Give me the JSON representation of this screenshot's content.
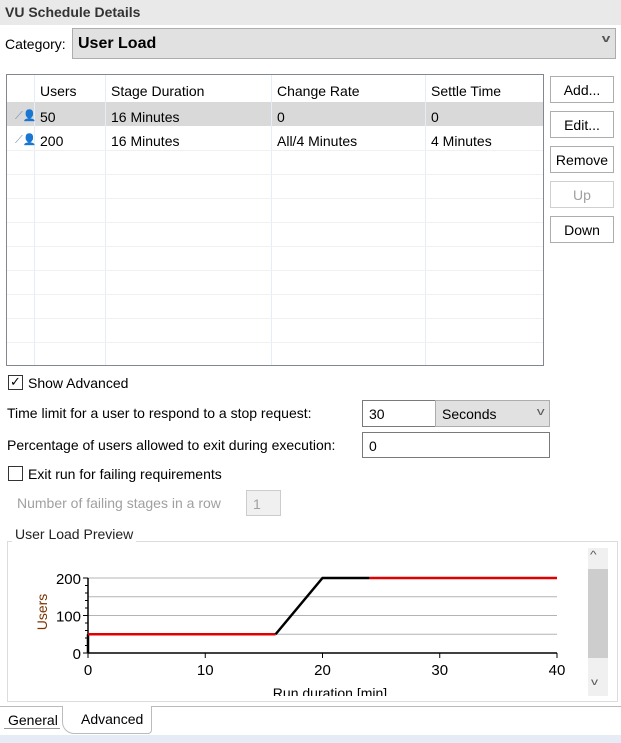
{
  "header": {
    "title": "VU Schedule Details"
  },
  "category": {
    "label": "Category:",
    "value": "User Load"
  },
  "table": {
    "columns": [
      "Users",
      "Stage Duration",
      "Change Rate",
      "Settle Time"
    ],
    "rows": [
      {
        "icon": "user-stage-icon",
        "users": "50",
        "duration": "16 Minutes",
        "rate": "0",
        "settle": "0",
        "selected": true
      },
      {
        "icon": "user-stage-icon",
        "users": "200",
        "duration": "16 Minutes",
        "rate": "All/4 Minutes",
        "settle": "4 Minutes",
        "selected": false
      }
    ]
  },
  "buttons": {
    "add": "Add...",
    "edit": "Edit...",
    "remove": "Remove",
    "up": "Up",
    "down": "Down"
  },
  "advanced": {
    "show_advanced": {
      "label": "Show Advanced",
      "checked": true
    },
    "time_limit": {
      "label": "Time limit for a user to respond to a stop request:",
      "value": "30",
      "unit": "Seconds"
    },
    "percentage": {
      "label": "Percentage of users allowed to exit during execution:",
      "value": "0"
    },
    "exit_run": {
      "label": "Exit run for failing requirements",
      "checked": false
    },
    "failing_stages": {
      "label": "Number of failing stages in a row",
      "value": "1"
    }
  },
  "preview": {
    "title": "User Load Preview"
  },
  "chart_data": {
    "type": "line",
    "xlabel": "Run duration [min]",
    "ylabel": "Users",
    "xlim": [
      0,
      40
    ],
    "ylim": [
      0,
      200
    ],
    "xticks": [
      "0",
      "10",
      "20",
      "30",
      "40"
    ],
    "yticks": [
      "0",
      "100",
      "200"
    ],
    "gridlines_y": [
      50,
      100,
      150,
      200
    ],
    "segments": [
      {
        "color": "#000000",
        "points": [
          [
            0,
            0
          ],
          [
            0,
            50
          ]
        ]
      },
      {
        "color": "#e00000",
        "points": [
          [
            0,
            50
          ],
          [
            16,
            50
          ]
        ]
      },
      {
        "color": "#000000",
        "points": [
          [
            16,
            50
          ],
          [
            20,
            200
          ],
          [
            24,
            200
          ]
        ]
      },
      {
        "color": "#e00000",
        "points": [
          [
            24,
            200
          ],
          [
            40,
            200
          ]
        ]
      }
    ]
  },
  "tabs": [
    {
      "label": "General",
      "active": false
    },
    {
      "label": "Advanced",
      "active": true
    }
  ]
}
